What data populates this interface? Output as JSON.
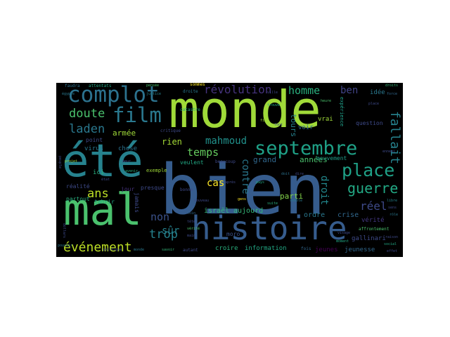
{
  "cloud": {
    "background": "#000000",
    "palette": [
      "#a0da39",
      "#365c8d",
      "#26828e",
      "#1fa187",
      "#4ac16d",
      "#46337e",
      "#fde725",
      "#277f8e",
      "#3e4a89"
    ],
    "words": [
      {
        "text": "bien",
        "c": "#365c8d"
      },
      {
        "text": "monde",
        "c": "#a0da39"
      },
      {
        "text": "été",
        "c": "#26828e"
      },
      {
        "text": "histoire",
        "c": "#365c8d"
      },
      {
        "text": "mal",
        "c": "#4ac16d"
      },
      {
        "text": "complot",
        "c": "#2c728e"
      },
      {
        "text": "septembre",
        "c": "#1fa187"
      },
      {
        "text": "film",
        "c": "#2a788e"
      },
      {
        "text": "place",
        "c": "#1fa187"
      },
      {
        "text": "révolution",
        "c": "#46337e"
      },
      {
        "text": "événement",
        "c": "#bddf26"
      },
      {
        "text": "guerre",
        "c": "#22a884"
      },
      {
        "text": "doute",
        "c": "#4ac16d"
      },
      {
        "text": "laden",
        "c": "#2a788e"
      },
      {
        "text": "homme",
        "c": "#2ab07f"
      },
      {
        "text": "ben",
        "c": "#414487"
      },
      {
        "text": "fallait",
        "c": "#26828e"
      },
      {
        "text": "mahmoud",
        "c": "#21918c"
      },
      {
        "text": "réel",
        "c": "#3e4a89"
      },
      {
        "text": "temps",
        "c": "#65cb5e"
      },
      {
        "text": "trop",
        "c": "#26828e"
      },
      {
        "text": "ans",
        "c": "#bddf26"
      },
      {
        "text": "non",
        "c": "#3b528b"
      },
      {
        "text": "sûr",
        "c": "#26828e"
      },
      {
        "text": "cas",
        "c": "#fde725"
      },
      {
        "text": "contre",
        "c": "#2a788e"
      },
      {
        "text": "droit",
        "c": "#23898e"
      },
      {
        "text": "rien",
        "c": "#a5db36"
      },
      {
        "text": "armée",
        "c": "#a0da39"
      },
      {
        "text": "années",
        "c": "#4ac16d"
      },
      {
        "text": "grand",
        "c": "#31688e"
      },
      {
        "text": "parti",
        "c": "#84d44b"
      },
      {
        "text": "israël",
        "c": "#35b779"
      },
      {
        "text": "aujourd",
        "c": "#35b779"
      },
      {
        "text": "ordre",
        "c": "#2a788e"
      },
      {
        "text": "crise",
        "c": "#31688e"
      },
      {
        "text": "vérité",
        "c": "#443983"
      },
      {
        "text": "gallinari",
        "c": "#3e4a89"
      },
      {
        "text": "jeunes",
        "c": "#440154"
      },
      {
        "text": "jeunesse",
        "c": "#31688e"
      },
      {
        "text": "information",
        "c": "#22a884"
      },
      {
        "text": "croire",
        "c": "#2ab07f"
      },
      {
        "text": "vrai",
        "c": "#a0da39"
      },
      {
        "text": "voir",
        "c": "#31688e"
      },
      {
        "text": "tours",
        "c": "#26828e"
      },
      {
        "text": "idée",
        "c": "#2a788e"
      },
      {
        "text": "question",
        "c": "#3e4a89"
      },
      {
        "text": "mouvement",
        "c": "#1f9e89"
      },
      {
        "text": "expérience",
        "c": "#1f9e89"
      },
      {
        "text": "ici",
        "c": "#2ab07f"
      },
      {
        "text": "virus",
        "c": "#2a788e"
      },
      {
        "text": "chose",
        "c": "#2c728e"
      },
      {
        "text": "point",
        "c": "#3e4a89"
      },
      {
        "text": "réalité",
        "c": "#3e4a89"
      },
      {
        "text": "partout",
        "c": "#2ab07f"
      },
      {
        "text": "tahrir",
        "c": "#22a884"
      },
      {
        "text": "jamais",
        "c": "#3e4a89"
      },
      {
        "text": "presque",
        "c": "#3e4a89"
      },
      {
        "text": "jour",
        "c": "#46337e"
      },
      {
        "text": "exemple",
        "c": "#a0da39"
      },
      {
        "text": "veulent",
        "c": "#22a884"
      },
      {
        "text": "moro",
        "c": "#3b528b"
      },
      {
        "text": "faudra",
        "c": "#2c728e"
      },
      {
        "text": "attentats",
        "c": "#22a884"
      },
      {
        "text": "sommes",
        "c": "#fde725"
      },
      {
        "text": "droite",
        "c": "#2a788e"
      },
      {
        "text": "catastre",
        "c": "#22a884"
      },
      {
        "text": "critique",
        "c": "#3e4a89"
      },
      {
        "text": "autant",
        "c": "#3e4a89"
      },
      {
        "text": "affrontement",
        "c": "#4ac16d"
      },
      {
        "text": "fois",
        "c": "#31688e"
      },
      {
        "text": "bonne",
        "c": "#3e4a89"
      },
      {
        "text": "beaucoup",
        "c": "#3e4a89"
      },
      {
        "text": "égypte",
        "c": "#2a788e"
      },
      {
        "text": "dollars",
        "c": "#3e4a89"
      },
      {
        "text": "pensée",
        "c": "#4ac16d"
      },
      {
        "text": "justice",
        "c": "#26828e"
      },
      {
        "text": "peuple",
        "c": "#3e4a89"
      },
      {
        "text": "pouvoir",
        "c": "#2a788e"
      },
      {
        "text": "politique",
        "c": "#3e4a89"
      },
      {
        "text": "monde",
        "c": "#2a788e"
      },
      {
        "text": "savoir",
        "c": "#35b779"
      },
      {
        "text": "nouveau",
        "c": "#3e4a89"
      },
      {
        "text": "suite",
        "c": "#2ab07f"
      },
      {
        "text": "ville",
        "c": "#3e4a89"
      },
      {
        "text": "trouve",
        "c": "#22a884"
      },
      {
        "text": "fin",
        "c": "#a0da39"
      },
      {
        "text": "font",
        "c": "#3e4a89"
      },
      {
        "text": "doit",
        "c": "#2c728e"
      },
      {
        "text": "pays",
        "c": "#22a884"
      },
      {
        "text": "dire",
        "c": "#3e4a89"
      },
      {
        "text": "gens",
        "c": "#fde725"
      },
      {
        "text": "après",
        "c": "#3e4a89"
      },
      {
        "text": "heure",
        "c": "#4ac16d"
      },
      {
        "text": "place",
        "c": "#3e4a89"
      },
      {
        "text": "droits",
        "c": "#35b779"
      },
      {
        "text": "force",
        "c": "#31688e"
      },
      {
        "text": "ennemi",
        "c": "#3e4a89"
      },
      {
        "text": "libre",
        "c": "#26828e"
      },
      {
        "text": "sens",
        "c": "#3e4a89"
      },
      {
        "text": "rôle",
        "c": "#2a788e"
      },
      {
        "text": "raison",
        "c": "#3e4a89"
      },
      {
        "text": "social",
        "c": "#22a884"
      },
      {
        "text": "effet",
        "c": "#3e4a89"
      },
      {
        "text": "projet",
        "c": "#a0da39"
      },
      {
        "text": "peur",
        "c": "#3e4a89"
      },
      {
        "text": "avenir",
        "c": "#2ab07f"
      },
      {
        "text": "état",
        "c": "#3e4a89"
      },
      {
        "text": "loin",
        "c": "#31688e"
      },
      {
        "text": "tête",
        "c": "#3e4a89"
      },
      {
        "text": "vérité",
        "c": "#4ac16d"
      },
      {
        "text": "main",
        "c": "#3e4a89"
      },
      {
        "text": "semble",
        "c": "#2a788e"
      },
      {
        "text": "visage",
        "c": "#3e4a89"
      },
      {
        "text": "moment",
        "c": "#22a884"
      }
    ]
  }
}
